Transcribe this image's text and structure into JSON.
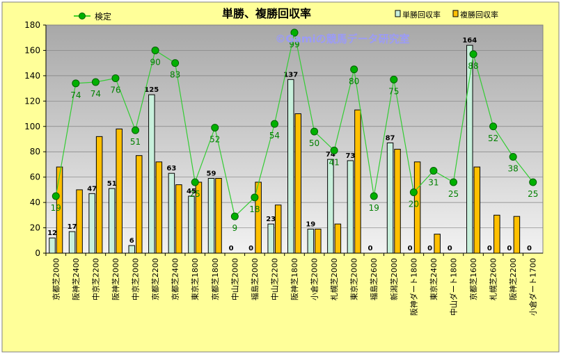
{
  "chart_data": {
    "type": "bar",
    "title": "単勝、複勝回収率",
    "watermark": "©Gamiの競馬データ研究室",
    "categories": [
      "京都芝2000",
      "阪神芝2400",
      "中京芝2200",
      "阪神芝2000",
      "中京芝2000",
      "京都芝2200",
      "京都芝2400",
      "東京芝1800",
      "京都芝1800",
      "中山芝2000",
      "福島芝2000",
      "中山芝2200",
      "阪神芝1800",
      "小倉芝2000",
      "札幌芝2000",
      "東京芝2000",
      "福島芝2600",
      "新潟芝2000",
      "阪神ダート1800",
      "東京芝2400",
      "中山ダート1800",
      "京都芝1600",
      "札幌芝2600",
      "阪神芝2200",
      "小倉ダート1700"
    ],
    "series": [
      {
        "name": "単勝回収率",
        "color": "#c8f0dc",
        "values": [
          12,
          17,
          47,
          51,
          6,
          125,
          63,
          45,
          59,
          0,
          0,
          23,
          137,
          19,
          74,
          73,
          0,
          87,
          0,
          0,
          0,
          164,
          0,
          0,
          0
        ],
        "labels": [
          "12",
          "17",
          "47",
          "51",
          "6",
          "125",
          "63",
          "45",
          "59",
          "0",
          "0",
          "23",
          "137",
          "19",
          "74",
          "73",
          "0",
          "87",
          "0",
          "0",
          "0",
          "164",
          "0",
          "0",
          "0"
        ]
      },
      {
        "name": "複勝回収率",
        "color": "#ffc000",
        "values": [
          68,
          50,
          92,
          98,
          77,
          72,
          54,
          56,
          59,
          0,
          56,
          38,
          110,
          19,
          23,
          113,
          0,
          82,
          72,
          15,
          0,
          68,
          30,
          29,
          0
        ]
      },
      {
        "name": "検定",
        "color": "#00b000",
        "values": [
          45,
          134,
          135,
          138,
          97,
          160,
          150,
          56,
          99,
          29,
          44,
          102,
          174,
          96,
          81,
          145,
          45,
          137,
          48,
          65,
          56,
          157,
          100,
          76,
          56
        ],
        "labels": [
          "19",
          "74",
          "74",
          "76",
          "51",
          "90",
          "83",
          "25",
          "52",
          "9",
          "18",
          "54",
          "99",
          "50",
          "41",
          "80",
          "19",
          "75",
          "20",
          "31",
          "25",
          "88",
          "52",
          "38",
          "25"
        ]
      }
    ],
    "yaxis": {
      "min": 0,
      "max": 180,
      "step": 20,
      "ticks": [
        "0",
        "20",
        "40",
        "60",
        "80",
        "100",
        "120",
        "140",
        "160",
        "180"
      ]
    },
    "grid": true,
    "legend_position": "top"
  }
}
